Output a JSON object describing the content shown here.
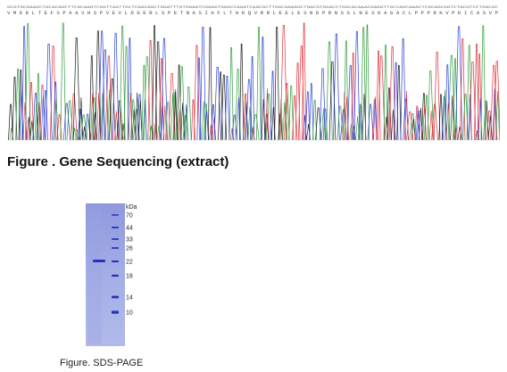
{
  "sequencing": {
    "caption": "Figure . Gene Sequencing (extract)",
    "trace_colors": {
      "A": "#2e9c3c",
      "C": "#2a3fd6",
      "G": "#1a1a1a",
      "T": "#e0303a"
    },
    "sequence_row_1": "GCGTGCGAAGCTGCACAGCTTCGCAAGTCGGTTAGTTGCTCAACAGCTGGATTTGTGGAATCGAAGTGGGCCAGATCAGCGCTTGGCGAAAGCTGACGTGGACCTGGCACAAACGAGGTTGCCAGCAAACTCGCAGCGGTCTACGTCCTGACGC",
    "sequence_row_2": "V M E K L T E F S P A A V H S P V E V L D G E R L S P E T N A S I A F L T H K Q V R R L E E L E S N D P R N S S L N E S K A G A C L P P P R K V P K I C A S V P"
  },
  "gel": {
    "caption": "Figure. SDS-PAGE",
    "unit_label": "kDa",
    "markers": [
      "70",
      "44",
      "33",
      "26",
      "22",
      "18",
      "14",
      "10"
    ],
    "sample_band_marker": "22"
  }
}
